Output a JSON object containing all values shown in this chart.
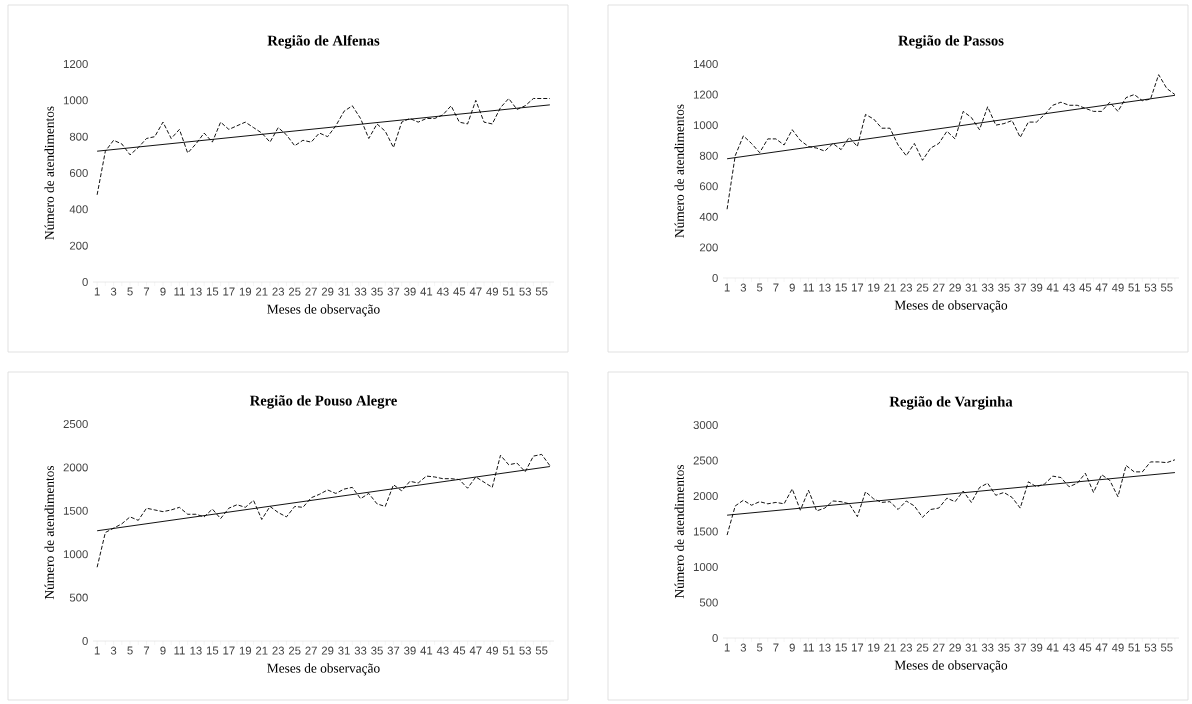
{
  "chart_data": [
    {
      "type": "line",
      "title": "Região de Alfenas",
      "xlabel": "Meses de observação",
      "ylabel": "Número de atendimentos",
      "categories": [
        "1",
        null,
        "3",
        null,
        "5",
        null,
        "7",
        null,
        "9",
        null,
        "11",
        null,
        "13",
        null,
        "15",
        null,
        "17",
        null,
        "19",
        null,
        "21",
        null,
        "23",
        null,
        "25",
        null,
        "27",
        null,
        "29",
        null,
        "31",
        null,
        "33",
        null,
        "35",
        null,
        "37",
        null,
        "39",
        null,
        "41",
        null,
        "43",
        null,
        "45",
        null,
        "47",
        null,
        "49",
        null,
        "51",
        null,
        "53",
        null,
        "55",
        null
      ],
      "ylim": [
        0,
        1200
      ],
      "yticks": [
        0,
        200,
        400,
        600,
        800,
        1000,
        1200
      ],
      "grid": false,
      "marker": "none",
      "series": [
        {
          "color": "#000000",
          "line_style": "dashed",
          "values": [
            480,
            720,
            780,
            760,
            700,
            740,
            790,
            800,
            880,
            790,
            840,
            710,
            760,
            820,
            770,
            880,
            840,
            860,
            880,
            850,
            820,
            770,
            850,
            810,
            750,
            780,
            770,
            820,
            800,
            860,
            940,
            970,
            900,
            790,
            870,
            830,
            740,
            880,
            900,
            880,
            900,
            900,
            920,
            970,
            880,
            870,
            1000,
            880,
            870,
            960,
            1010,
            950,
            970,
            1010,
            1010,
            1010
          ]
        },
        {
          "color": "#000000",
          "line_style": "solid",
          "values": [
            720,
            null,
            null,
            null,
            null,
            null,
            null,
            null,
            null,
            null,
            null,
            null,
            null,
            null,
            null,
            null,
            null,
            null,
            null,
            null,
            null,
            null,
            null,
            null,
            null,
            null,
            null,
            null,
            null,
            null,
            null,
            null,
            null,
            null,
            null,
            null,
            null,
            null,
            null,
            null,
            null,
            null,
            null,
            null,
            null,
            null,
            null,
            null,
            null,
            null,
            null,
            null,
            null,
            null,
            null,
            975
          ]
        }
      ]
    },
    {
      "type": "line",
      "title": "Região de Passos",
      "xlabel": "Meses de observação",
      "ylabel": "Número de atendimentos",
      "categories": [
        "1",
        null,
        "3",
        null,
        "5",
        null,
        "7",
        null,
        "9",
        null,
        "11",
        null,
        "13",
        null,
        "15",
        null,
        "17",
        null,
        "19",
        null,
        "21",
        null,
        "23",
        null,
        "25",
        null,
        "27",
        null,
        "29",
        null,
        "31",
        null,
        "33",
        null,
        "35",
        null,
        "37",
        null,
        "39",
        null,
        "41",
        null,
        "43",
        null,
        "45",
        null,
        "47",
        null,
        "49",
        null,
        "51",
        null,
        "53",
        null,
        "55",
        null
      ],
      "ylim": [
        0,
        1400
      ],
      "yticks": [
        0,
        200,
        400,
        600,
        800,
        1000,
        1200,
        1400
      ],
      "grid": false,
      "marker": "none",
      "series": [
        {
          "color": "#000000",
          "line_style": "dashed",
          "values": [
            450,
            800,
            930,
            880,
            820,
            910,
            910,
            870,
            970,
            900,
            860,
            850,
            830,
            880,
            840,
            920,
            860,
            1070,
            1040,
            980,
            980,
            870,
            800,
            880,
            770,
            850,
            880,
            960,
            910,
            1090,
            1050,
            970,
            1120,
            1000,
            1010,
            1030,
            920,
            1020,
            1020,
            1070,
            1130,
            1150,
            1130,
            1130,
            1110,
            1090,
            1090,
            1150,
            1090,
            1180,
            1200,
            1160,
            1170,
            1330,
            1240,
            1200
          ]
        },
        {
          "color": "#000000",
          "line_style": "solid",
          "values": [
            780,
            null,
            null,
            null,
            null,
            null,
            null,
            null,
            null,
            null,
            null,
            null,
            null,
            null,
            null,
            null,
            null,
            null,
            null,
            null,
            null,
            null,
            null,
            null,
            null,
            null,
            null,
            null,
            null,
            null,
            null,
            null,
            null,
            null,
            null,
            null,
            null,
            null,
            null,
            null,
            null,
            null,
            null,
            null,
            null,
            null,
            null,
            null,
            null,
            null,
            null,
            null,
            null,
            null,
            null,
            1195
          ]
        }
      ]
    },
    {
      "type": "line",
      "title": "Região de Pouso Alegre",
      "xlabel": "Meses de observação",
      "ylabel": "Número de atendimentos",
      "categories": [
        "1",
        null,
        "3",
        null,
        "5",
        null,
        "7",
        null,
        "9",
        null,
        "11",
        null,
        "13",
        null,
        "15",
        null,
        "17",
        null,
        "19",
        null,
        "21",
        null,
        "23",
        null,
        "25",
        null,
        "27",
        null,
        "29",
        null,
        "31",
        null,
        "33",
        null,
        "35",
        null,
        "37",
        null,
        "39",
        null,
        "41",
        null,
        "43",
        null,
        "45",
        null,
        "47",
        null,
        "49",
        null,
        "51",
        null,
        "53",
        null,
        "55",
        null
      ],
      "ylim": [
        0,
        2500
      ],
      "yticks": [
        0,
        500,
        1000,
        1500,
        2000,
        2500
      ],
      "grid": false,
      "marker": "none",
      "series": [
        {
          "color": "#000000",
          "line_style": "dashed",
          "values": [
            850,
            1250,
            1300,
            1350,
            1430,
            1390,
            1530,
            1510,
            1490,
            1510,
            1540,
            1460,
            1460,
            1430,
            1520,
            1410,
            1530,
            1570,
            1540,
            1620,
            1400,
            1550,
            1480,
            1430,
            1550,
            1540,
            1650,
            1690,
            1740,
            1700,
            1750,
            1770,
            1640,
            1700,
            1580,
            1550,
            1800,
            1730,
            1840,
            1820,
            1900,
            1890,
            1870,
            1870,
            1860,
            1760,
            1890,
            1830,
            1770,
            2140,
            2030,
            2050,
            1950,
            2130,
            2150,
            2020
          ]
        },
        {
          "color": "#000000",
          "line_style": "solid",
          "values": [
            1270,
            null,
            null,
            null,
            null,
            null,
            null,
            null,
            null,
            null,
            null,
            null,
            null,
            null,
            null,
            null,
            null,
            null,
            null,
            null,
            null,
            null,
            null,
            null,
            null,
            null,
            null,
            null,
            null,
            null,
            null,
            null,
            null,
            null,
            null,
            null,
            null,
            null,
            null,
            null,
            null,
            null,
            null,
            null,
            null,
            null,
            null,
            null,
            null,
            null,
            null,
            null,
            null,
            null,
            null,
            2010
          ]
        }
      ]
    },
    {
      "type": "line",
      "title": "Região de Varginha",
      "xlabel": "Meses de observação",
      "ylabel": "Número de atendimentos",
      "categories": [
        "1",
        null,
        "3",
        null,
        "5",
        null,
        "7",
        null,
        "9",
        null,
        "11",
        null,
        "13",
        null,
        "15",
        null,
        "17",
        null,
        "19",
        null,
        "21",
        null,
        "23",
        null,
        "25",
        null,
        "27",
        null,
        "29",
        null,
        "31",
        null,
        "33",
        null,
        "35",
        null,
        "37",
        null,
        "39",
        null,
        "41",
        null,
        "43",
        null,
        "45",
        null,
        "47",
        null,
        "49",
        null,
        "51",
        null,
        "53",
        null,
        "55",
        null
      ],
      "ylim": [
        0,
        3000
      ],
      "yticks": [
        0,
        500,
        1000,
        1500,
        2000,
        2500,
        3000
      ],
      "grid": false,
      "marker": "none",
      "series": [
        {
          "color": "#000000",
          "line_style": "dashed",
          "values": [
            1450,
            1860,
            1940,
            1870,
            1920,
            1890,
            1910,
            1890,
            2100,
            1800,
            2080,
            1790,
            1830,
            1930,
            1920,
            1890,
            1710,
            2060,
            1960,
            1910,
            1920,
            1810,
            1930,
            1860,
            1700,
            1810,
            1830,
            1970,
            1920,
            2070,
            1910,
            2120,
            2180,
            2010,
            2050,
            1980,
            1830,
            2200,
            2130,
            2170,
            2280,
            2260,
            2130,
            2180,
            2320,
            2050,
            2300,
            2220,
            1990,
            2430,
            2340,
            2340,
            2480,
            2480,
            2470,
            2510
          ]
        },
        {
          "color": "#000000",
          "line_style": "solid",
          "values": [
            1730,
            null,
            null,
            null,
            null,
            null,
            null,
            null,
            null,
            null,
            null,
            null,
            null,
            null,
            null,
            null,
            null,
            null,
            null,
            null,
            null,
            null,
            null,
            null,
            null,
            null,
            null,
            null,
            null,
            null,
            null,
            null,
            null,
            null,
            null,
            null,
            null,
            null,
            null,
            null,
            null,
            null,
            null,
            null,
            null,
            null,
            null,
            null,
            null,
            null,
            null,
            null,
            null,
            null,
            null,
            2330
          ]
        }
      ]
    }
  ]
}
